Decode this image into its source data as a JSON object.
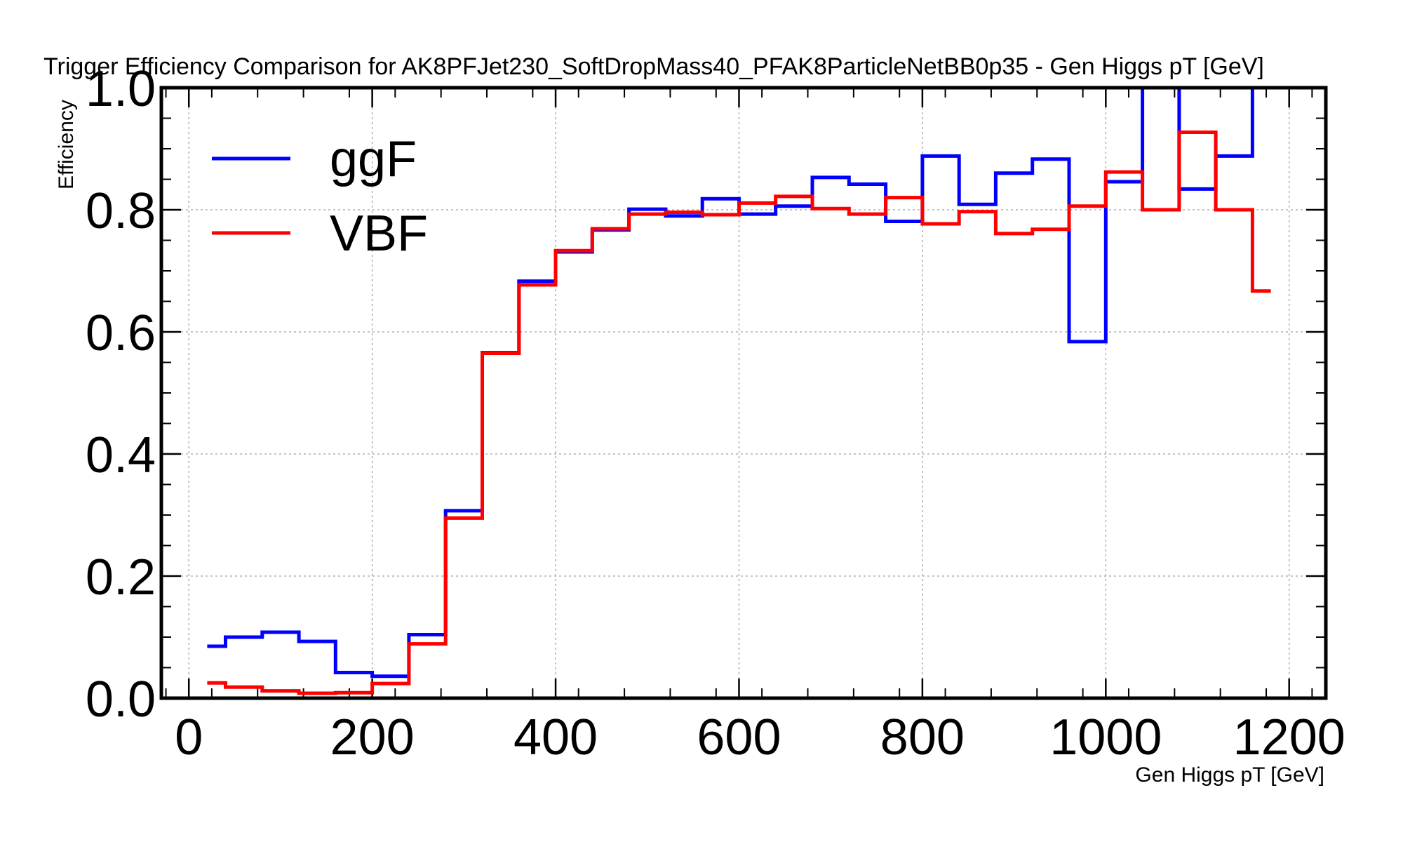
{
  "chart_data": {
    "type": "line",
    "drawstyle": "steps-mid",
    "title": "Trigger Efficiency Comparison for AK8PFJet230_SoftDropMass40_PFAK8ParticleNetBB0p35 - Gen Higgs pT [GeV]",
    "xlabel": "Gen Higgs pT [GeV]",
    "ylabel": "Efficiency",
    "xlim": [
      -30,
      1240
    ],
    "ylim": [
      0,
      1.0
    ],
    "xticks": [
      0,
      200,
      400,
      600,
      800,
      1000,
      1200
    ],
    "yticks": [
      0.0,
      0.2,
      0.4,
      0.6,
      0.8,
      1.0
    ],
    "xtick_labels": [
      "0",
      "200",
      "400",
      "600",
      "800",
      "1000",
      "1200"
    ],
    "ytick_labels": [
      "0.0",
      "0.2",
      "0.4",
      "0.6",
      "0.8",
      "1.0"
    ],
    "grid": true,
    "legend_position": "top-left",
    "x": [
      20,
      60,
      100,
      140,
      180,
      220,
      260,
      300,
      340,
      380,
      420,
      460,
      500,
      540,
      580,
      620,
      660,
      700,
      740,
      780,
      820,
      860,
      900,
      940,
      980,
      1020,
      1060,
      1100,
      1140,
      1180
    ],
    "series": [
      {
        "name": "ggF",
        "color": "#0000ff",
        "values": [
          0.085,
          0.1,
          0.108,
          0.093,
          0.042,
          0.036,
          0.104,
          0.307,
          0.566,
          0.683,
          0.731,
          0.767,
          0.801,
          0.79,
          0.818,
          0.793,
          0.806,
          0.853,
          0.842,
          0.781,
          0.888,
          0.809,
          0.86,
          0.883,
          0.584,
          0.846,
          1.05,
          0.834,
          0.888,
          1.05
        ]
      },
      {
        "name": "VBF",
        "color": "#ff0000",
        "values": [
          0.025,
          0.018,
          0.012,
          0.008,
          0.009,
          0.024,
          0.089,
          0.295,
          0.565,
          0.677,
          0.733,
          0.769,
          0.793,
          0.796,
          0.792,
          0.811,
          0.822,
          0.802,
          0.793,
          0.82,
          0.777,
          0.797,
          0.761,
          0.768,
          0.806,
          0.862,
          0.8,
          0.927,
          0.8,
          0.667
        ]
      }
    ]
  }
}
